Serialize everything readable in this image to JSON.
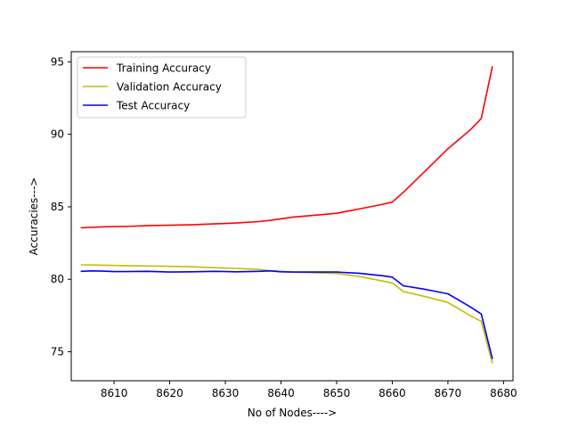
{
  "chart_data": {
    "type": "line",
    "title": "",
    "xlabel": "No of Nodes---->",
    "ylabel": "Accuracies--->",
    "xlim": [
      8602.3,
      8681.7
    ],
    "ylim": [
      73.0,
      95.7
    ],
    "xticks": [
      8610,
      8620,
      8630,
      8640,
      8650,
      8660,
      8670,
      8680
    ],
    "yticks": [
      75,
      80,
      85,
      90,
      95
    ],
    "grid": false,
    "legend_position": "upper-left",
    "series": [
      {
        "name": "Training Accuracy",
        "color": "#ff0000",
        "x": [
          8604,
          8608,
          8612,
          8616,
          8620,
          8624,
          8628,
          8632,
          8636,
          8638,
          8640,
          8642,
          8646,
          8650,
          8654,
          8658,
          8660,
          8662,
          8666,
          8670,
          8674,
          8676,
          8678
        ],
        "y": [
          83.55,
          83.62,
          83.64,
          83.7,
          83.73,
          83.76,
          83.82,
          83.88,
          83.98,
          84.06,
          84.17,
          84.28,
          84.42,
          84.55,
          84.85,
          85.15,
          85.32,
          86.0,
          87.5,
          89.0,
          90.3,
          91.1,
          94.7
        ]
      },
      {
        "name": "Validation Accuracy",
        "color": "#bfbf00",
        "x": [
          8604,
          8608,
          8612,
          8616,
          8620,
          8624,
          8628,
          8632,
          8636,
          8638,
          8640,
          8642,
          8646,
          8650,
          8654,
          8658,
          8660,
          8662,
          8666,
          8670,
          8674,
          8676,
          8678
        ],
        "y": [
          81.0,
          80.97,
          80.94,
          80.92,
          80.89,
          80.86,
          80.8,
          80.75,
          80.68,
          80.6,
          80.55,
          80.5,
          80.45,
          80.4,
          80.2,
          79.9,
          79.75,
          79.15,
          78.8,
          78.4,
          77.5,
          77.1,
          74.2
        ]
      },
      {
        "name": "Test Accuracy",
        "color": "#0000ff",
        "x": [
          8604,
          8606,
          8608,
          8610,
          8612,
          8616,
          8620,
          8624,
          8628,
          8632,
          8636,
          8638,
          8640,
          8642,
          8646,
          8650,
          8654,
          8658,
          8660,
          8662,
          8666,
          8670,
          8674,
          8676,
          8678
        ],
        "y": [
          80.55,
          80.58,
          80.56,
          80.53,
          80.53,
          80.55,
          80.5,
          80.52,
          80.55,
          80.52,
          80.55,
          80.58,
          80.52,
          80.5,
          80.5,
          80.5,
          80.42,
          80.25,
          80.15,
          79.55,
          79.3,
          79.0,
          78.1,
          77.6,
          74.5
        ]
      }
    ]
  }
}
